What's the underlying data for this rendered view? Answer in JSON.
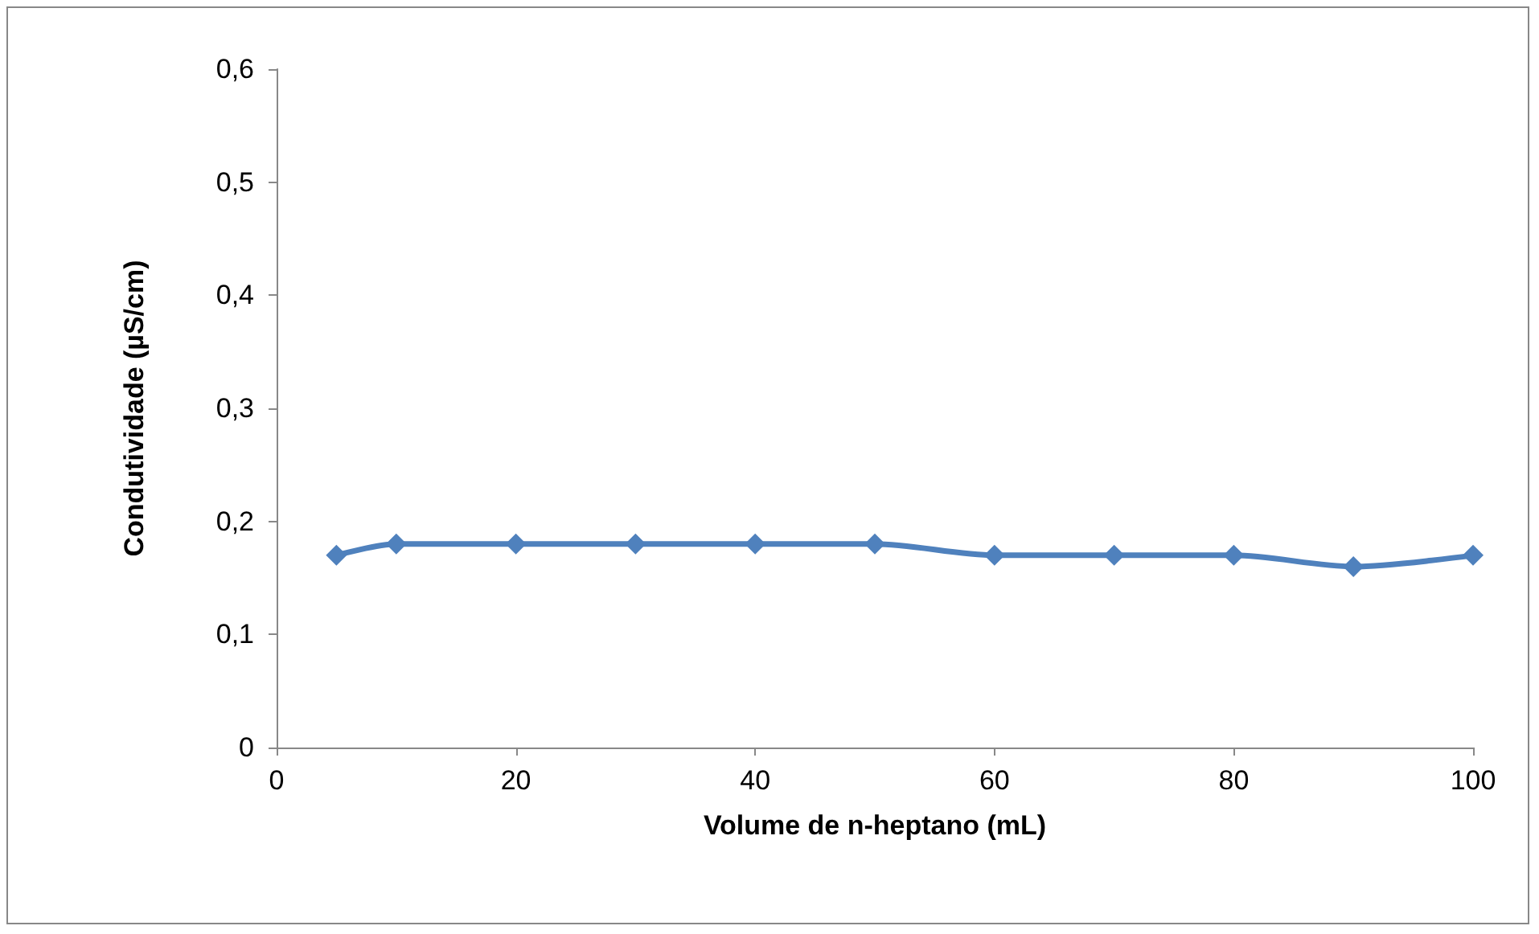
{
  "chart_data": {
    "type": "line",
    "xlabel": "Volume de n-heptano (mL)",
    "ylabel": "Condutividade (µS/cm)",
    "x": [
      5,
      10,
      20,
      30,
      40,
      50,
      60,
      70,
      80,
      90,
      100
    ],
    "series": [
      {
        "color": "#4f81bd",
        "values": [
          0.17,
          0.18,
          0.18,
          0.18,
          0.18,
          0.18,
          0.17,
          0.17,
          0.17,
          0.16,
          0.17
        ]
      }
    ],
    "xlim": [
      0,
      100
    ],
    "xticks": [
      0,
      20,
      40,
      60,
      80,
      100
    ],
    "ylim": [
      0,
      0.6
    ],
    "yticks": [
      {
        "value": 0,
        "label": "0"
      },
      {
        "value": 0.1,
        "label": "0,1"
      },
      {
        "value": 0.2,
        "label": "0,2"
      },
      {
        "value": 0.3,
        "label": "0,3"
      },
      {
        "value": 0.4,
        "label": "0,4"
      },
      {
        "value": 0.5,
        "label": "0,5"
      },
      {
        "value": 0.6,
        "label": "0,6"
      }
    ],
    "grid": false,
    "marker": "diamond",
    "line_style": "solid"
  }
}
